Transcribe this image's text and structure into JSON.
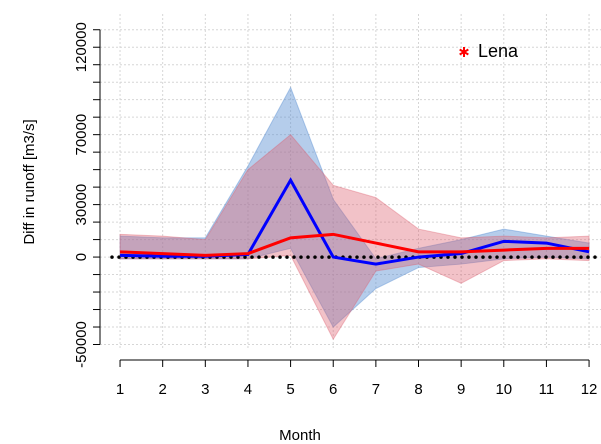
{
  "chart_data": {
    "type": "line",
    "ylabel": "Diff in runoff [m3/s]",
    "xlabel": "Month",
    "annotation": {
      "text": "Lena",
      "color": "#ff0000"
    },
    "x": [
      1,
      2,
      3,
      4,
      5,
      6,
      7,
      8,
      9,
      10,
      11,
      12
    ],
    "xlim": [
      0.53,
      12.28
    ],
    "xticks": [
      1,
      2,
      3,
      4,
      5,
      6,
      7,
      8,
      9,
      10,
      11,
      12
    ],
    "ylim": [
      -52000,
      139000
    ],
    "yticks": [
      -50000,
      0,
      30000,
      70000,
      120000
    ],
    "yminorticks": [
      -40000,
      -30000,
      -20000,
      -10000,
      10000,
      20000,
      40000,
      50000,
      60000,
      80000,
      90000,
      100000,
      110000,
      130000
    ],
    "grid": true,
    "hline": 0,
    "series": [
      {
        "color": "#0000ff",
        "band_color": "rgba(90,145,210,0.45)",
        "values": [
          1000,
          500,
          500,
          1500,
          44000,
          0,
          -4000,
          0,
          2000,
          9000,
          8000,
          3000
        ],
        "upper": [
          12000,
          11000,
          11000,
          52000,
          97000,
          33000,
          -1000,
          5000,
          10000,
          16000,
          12000,
          8000
        ],
        "lower": [
          -1000,
          -1000,
          -1000,
          -1000,
          5000,
          -40000,
          -18000,
          -6000,
          -4000,
          -1000,
          0,
          -1000
        ]
      },
      {
        "color": "#ff0000",
        "band_color": "rgba(220,95,110,0.38)",
        "values": [
          3000,
          2000,
          1000,
          2000,
          11000,
          13000,
          8000,
          3000,
          3000,
          4000,
          5000,
          5000
        ],
        "upper": [
          13000,
          12000,
          10000,
          50000,
          70000,
          41000,
          34000,
          16000,
          11000,
          12000,
          11000,
          12000
        ],
        "lower": [
          -1000,
          -1000,
          -1000,
          -1000,
          1000,
          -47000,
          -8000,
          -4000,
          -15000,
          -2000,
          -1000,
          -2000
        ]
      }
    ]
  }
}
